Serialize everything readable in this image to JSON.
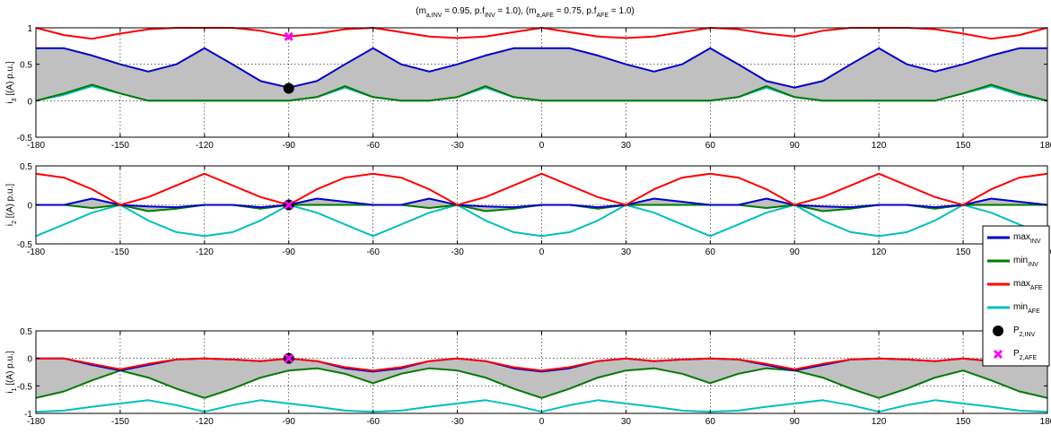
{
  "figure": {
    "title": {
      "parts": [
        {
          "t": "(m",
          "sub": false
        },
        {
          "t": "a,INV",
          "sub": true
        },
        {
          "t": " = 0.95, p.f",
          "sub": false
        },
        {
          "t": "INV",
          "sub": true
        },
        {
          "t": " = 1.0), (m",
          "sub": false
        },
        {
          "t": "a,AFE",
          "sub": true
        },
        {
          "t": " = 0.75, p.f",
          "sub": false
        },
        {
          "t": "AFE",
          "sub": true
        },
        {
          "t": " = 1.0)",
          "sub": false
        }
      ]
    },
    "x_ticks": [
      "-180",
      "-150",
      "-120",
      "-90",
      "-60",
      "-30",
      "0",
      "30",
      "60",
      "90",
      "120",
      "150",
      "180"
    ],
    "colors": {
      "max_inv": "#0000cc",
      "min_inv": "#007a00",
      "max_afe": "#ff0000",
      "min_afe": "#00bfbf",
      "fill": "#c0c0c0",
      "p_inv": "#000000",
      "p_afe": "#ff00ff"
    }
  },
  "legend": {
    "entries": [
      {
        "base": "max",
        "sub": "INV",
        "color": "#0000cc",
        "marker": "line"
      },
      {
        "base": "min",
        "sub": "INV",
        "color": "#007a00",
        "marker": "line"
      },
      {
        "base": "max",
        "sub": "AFE",
        "color": "#ff0000",
        "marker": "line"
      },
      {
        "base": "min",
        "sub": "AFE",
        "color": "#00bfbf",
        "marker": "line"
      },
      {
        "base": "P",
        "sub": "2,INV",
        "color": "#000000",
        "marker": "circle"
      },
      {
        "base": "P",
        "sub": "2,AFE",
        "color": "#ff00ff",
        "marker": "x"
      }
    ]
  },
  "chart_data": [
    {
      "type": "line",
      "ylabel": {
        "pre": "i",
        "sub": "3",
        "post": " [(A) p.u.]"
      },
      "xlim": [
        -180,
        180
      ],
      "ylim": [
        -0.5,
        1
      ],
      "y_ticks": [
        "-0.5",
        "0",
        "0.5",
        "1"
      ],
      "grid": true,
      "x": [
        -180,
        -170,
        -160,
        -150,
        -140,
        -130,
        -120,
        -110,
        -100,
        -90,
        -80,
        -70,
        -60,
        -50,
        -40,
        -30,
        -20,
        -10,
        0,
        10,
        20,
        30,
        40,
        50,
        60,
        70,
        80,
        90,
        100,
        110,
        120,
        130,
        140,
        150,
        160,
        170,
        180
      ],
      "series": [
        {
          "key": "max_inv",
          "values": [
            0.72,
            0.72,
            0.62,
            0.5,
            0.4,
            0.5,
            0.72,
            0.5,
            0.27,
            0.18,
            0.27,
            0.5,
            0.72,
            0.5,
            0.4,
            0.5,
            0.62,
            0.72,
            0.72,
            0.72,
            0.62,
            0.5,
            0.4,
            0.5,
            0.72,
            0.5,
            0.27,
            0.18,
            0.27,
            0.5,
            0.72,
            0.5,
            0.4,
            0.5,
            0.62,
            0.72,
            0.72
          ]
        },
        {
          "key": "min_inv",
          "values": [
            0.0,
            0.1,
            0.22,
            0.1,
            0.0,
            0.0,
            0.0,
            0.0,
            0.0,
            0.0,
            0.05,
            0.2,
            0.05,
            0.0,
            0.0,
            0.05,
            0.2,
            0.05,
            0.0,
            0.0,
            0.0,
            0.0,
            0.0,
            0.0,
            0.0,
            0.05,
            0.2,
            0.05,
            0.0,
            0.0,
            0.0,
            0.0,
            0.0,
            0.1,
            0.22,
            0.1,
            0.0
          ]
        },
        {
          "key": "max_afe",
          "values": [
            1.0,
            0.9,
            0.85,
            0.92,
            0.98,
            1.0,
            1.0,
            1.0,
            0.96,
            0.88,
            0.92,
            0.98,
            1.0,
            0.94,
            0.88,
            0.86,
            0.88,
            0.94,
            1.0,
            0.94,
            0.88,
            0.86,
            0.88,
            0.94,
            1.0,
            0.98,
            0.92,
            0.88,
            0.96,
            1.0,
            1.0,
            1.0,
            0.98,
            0.92,
            0.85,
            0.9,
            1.0
          ]
        },
        {
          "key": "min_afe",
          "values": [
            0.0,
            0.08,
            0.2,
            0.1,
            0.0,
            0.0,
            0.0,
            0.0,
            0.0,
            0.0,
            0.05,
            0.18,
            0.05,
            0.0,
            0.0,
            0.05,
            0.18,
            0.05,
            0.0,
            0.0,
            0.0,
            0.0,
            0.0,
            0.0,
            0.0,
            0.05,
            0.18,
            0.05,
            0.0,
            0.0,
            0.0,
            0.0,
            0.0,
            0.1,
            0.2,
            0.08,
            0.0
          ]
        }
      ],
      "points": [
        {
          "key": "p_inv",
          "x": -90,
          "y": 0.17
        },
        {
          "key": "p_afe",
          "x": -90,
          "y": 0.88
        }
      ]
    },
    {
      "type": "line",
      "ylabel": {
        "pre": "i",
        "sub": "2",
        "post": " [(A) p.u.]"
      },
      "xlim": [
        -180,
        180
      ],
      "ylim": [
        -0.5,
        0.5
      ],
      "y_ticks": [
        "-0.5",
        "0",
        "0.5"
      ],
      "grid": true,
      "x": [
        -180,
        -170,
        -160,
        -150,
        -140,
        -130,
        -120,
        -110,
        -100,
        -90,
        -80,
        -70,
        -60,
        -50,
        -40,
        -30,
        -20,
        -10,
        0,
        10,
        20,
        30,
        40,
        50,
        60,
        70,
        80,
        90,
        100,
        110,
        120,
        130,
        140,
        150,
        160,
        170,
        180
      ],
      "series": [
        {
          "key": "max_inv",
          "values": [
            0.0,
            0.0,
            0.08,
            0.0,
            -0.02,
            -0.03,
            0.0,
            0.0,
            -0.03,
            0.0,
            0.08,
            0.04,
            0.0,
            0.0,
            0.08,
            0.0,
            -0.02,
            -0.03,
            0.0,
            0.0,
            -0.03,
            0.0,
            0.08,
            0.04,
            0.0,
            0.0,
            0.08,
            0.0,
            -0.02,
            -0.03,
            0.0,
            0.0,
            -0.03,
            0.0,
            0.08,
            0.04,
            0.0
          ]
        },
        {
          "key": "min_inv",
          "values": [
            0.0,
            0.0,
            -0.04,
            0.0,
            -0.08,
            -0.05,
            0.0,
            0.0,
            -0.05,
            0.0,
            0.0,
            0.0,
            0.0,
            0.0,
            -0.04,
            0.0,
            -0.08,
            -0.05,
            0.0,
            0.0,
            -0.05,
            0.0,
            0.0,
            0.0,
            0.0,
            0.0,
            -0.04,
            0.0,
            -0.08,
            -0.05,
            0.0,
            0.0,
            -0.05,
            0.0,
            0.0,
            0.0,
            0.0
          ]
        },
        {
          "key": "max_afe",
          "values": [
            0.4,
            0.35,
            0.2,
            0.0,
            0.1,
            0.25,
            0.4,
            0.25,
            0.1,
            0.0,
            0.2,
            0.35,
            0.4,
            0.35,
            0.2,
            0.0,
            0.1,
            0.25,
            0.4,
            0.25,
            0.1,
            0.0,
            0.2,
            0.35,
            0.4,
            0.35,
            0.2,
            0.0,
            0.1,
            0.25,
            0.4,
            0.25,
            0.1,
            0.0,
            0.2,
            0.35,
            0.4
          ]
        },
        {
          "key": "min_afe",
          "values": [
            -0.4,
            -0.25,
            -0.1,
            0.0,
            -0.2,
            -0.35,
            -0.4,
            -0.35,
            -0.2,
            0.0,
            -0.1,
            -0.25,
            -0.4,
            -0.25,
            -0.1,
            0.0,
            -0.2,
            -0.35,
            -0.4,
            -0.35,
            -0.2,
            0.0,
            -0.1,
            -0.25,
            -0.4,
            -0.25,
            -0.1,
            0.0,
            -0.2,
            -0.35,
            -0.4,
            -0.35,
            -0.2,
            0.0,
            -0.1,
            -0.25,
            -0.4
          ]
        }
      ],
      "points": [
        {
          "key": "p_inv",
          "x": -90,
          "y": 0.0
        },
        {
          "key": "p_afe",
          "x": -90,
          "y": 0.0
        }
      ]
    },
    {
      "type": "line",
      "ylabel": {
        "pre": "i",
        "sub": "1",
        "post": " [(A) p.u.]"
      },
      "xlim": [
        -180,
        180
      ],
      "ylim": [
        -1,
        0.5
      ],
      "y_ticks": [
        "-1",
        "-0.5",
        "0",
        "0.5"
      ],
      "grid": true,
      "x": [
        -180,
        -170,
        -160,
        -150,
        -140,
        -130,
        -120,
        -110,
        -100,
        -90,
        -80,
        -70,
        -60,
        -50,
        -40,
        -30,
        -20,
        -10,
        0,
        10,
        20,
        30,
        40,
        50,
        60,
        70,
        80,
        90,
        100,
        110,
        120,
        130,
        140,
        150,
        160,
        170,
        180
      ],
      "series": [
        {
          "key": "max_inv",
          "values": [
            0.0,
            0.0,
            -0.12,
            -0.22,
            -0.12,
            -0.02,
            0.0,
            -0.02,
            -0.05,
            0.0,
            -0.05,
            -0.18,
            -0.24,
            -0.18,
            -0.05,
            0.0,
            -0.05,
            -0.18,
            -0.24,
            -0.18,
            -0.05,
            0.0,
            -0.05,
            -0.02,
            0.0,
            -0.02,
            -0.12,
            -0.22,
            -0.12,
            -0.02,
            0.0,
            -0.02,
            -0.05,
            0.0,
            -0.05,
            -0.02,
            0.0
          ]
        },
        {
          "key": "min_inv",
          "values": [
            -0.72,
            -0.6,
            -0.4,
            -0.22,
            -0.35,
            -0.55,
            -0.72,
            -0.55,
            -0.35,
            -0.22,
            -0.18,
            -0.28,
            -0.45,
            -0.28,
            -0.18,
            -0.22,
            -0.35,
            -0.55,
            -0.72,
            -0.55,
            -0.35,
            -0.22,
            -0.18,
            -0.28,
            -0.45,
            -0.28,
            -0.18,
            -0.22,
            -0.35,
            -0.55,
            -0.72,
            -0.55,
            -0.35,
            -0.22,
            -0.4,
            -0.6,
            -0.72
          ]
        },
        {
          "key": "max_afe",
          "values": [
            0.0,
            0.0,
            -0.1,
            -0.2,
            -0.1,
            -0.02,
            0.0,
            -0.02,
            -0.05,
            0.0,
            -0.05,
            -0.16,
            -0.22,
            -0.16,
            -0.05,
            0.0,
            -0.05,
            -0.16,
            -0.22,
            -0.16,
            -0.05,
            0.0,
            -0.05,
            -0.02,
            0.0,
            -0.02,
            -0.1,
            -0.2,
            -0.1,
            -0.02,
            0.0,
            -0.02,
            -0.05,
            0.0,
            -0.05,
            -0.02,
            0.0
          ]
        },
        {
          "key": "min_afe",
          "values": [
            -0.97,
            -0.95,
            -0.88,
            -0.82,
            -0.76,
            -0.85,
            -0.97,
            -0.85,
            -0.76,
            -0.82,
            -0.88,
            -0.95,
            -0.97,
            -0.95,
            -0.88,
            -0.82,
            -0.76,
            -0.85,
            -0.97,
            -0.85,
            -0.76,
            -0.82,
            -0.88,
            -0.95,
            -0.97,
            -0.95,
            -0.88,
            -0.82,
            -0.76,
            -0.85,
            -0.97,
            -0.85,
            -0.76,
            -0.82,
            -0.88,
            -0.95,
            -0.97
          ]
        }
      ],
      "points": [
        {
          "key": "p_inv",
          "x": -90,
          "y": 0.0
        },
        {
          "key": "p_afe",
          "x": -90,
          "y": 0.0
        }
      ]
    }
  ]
}
